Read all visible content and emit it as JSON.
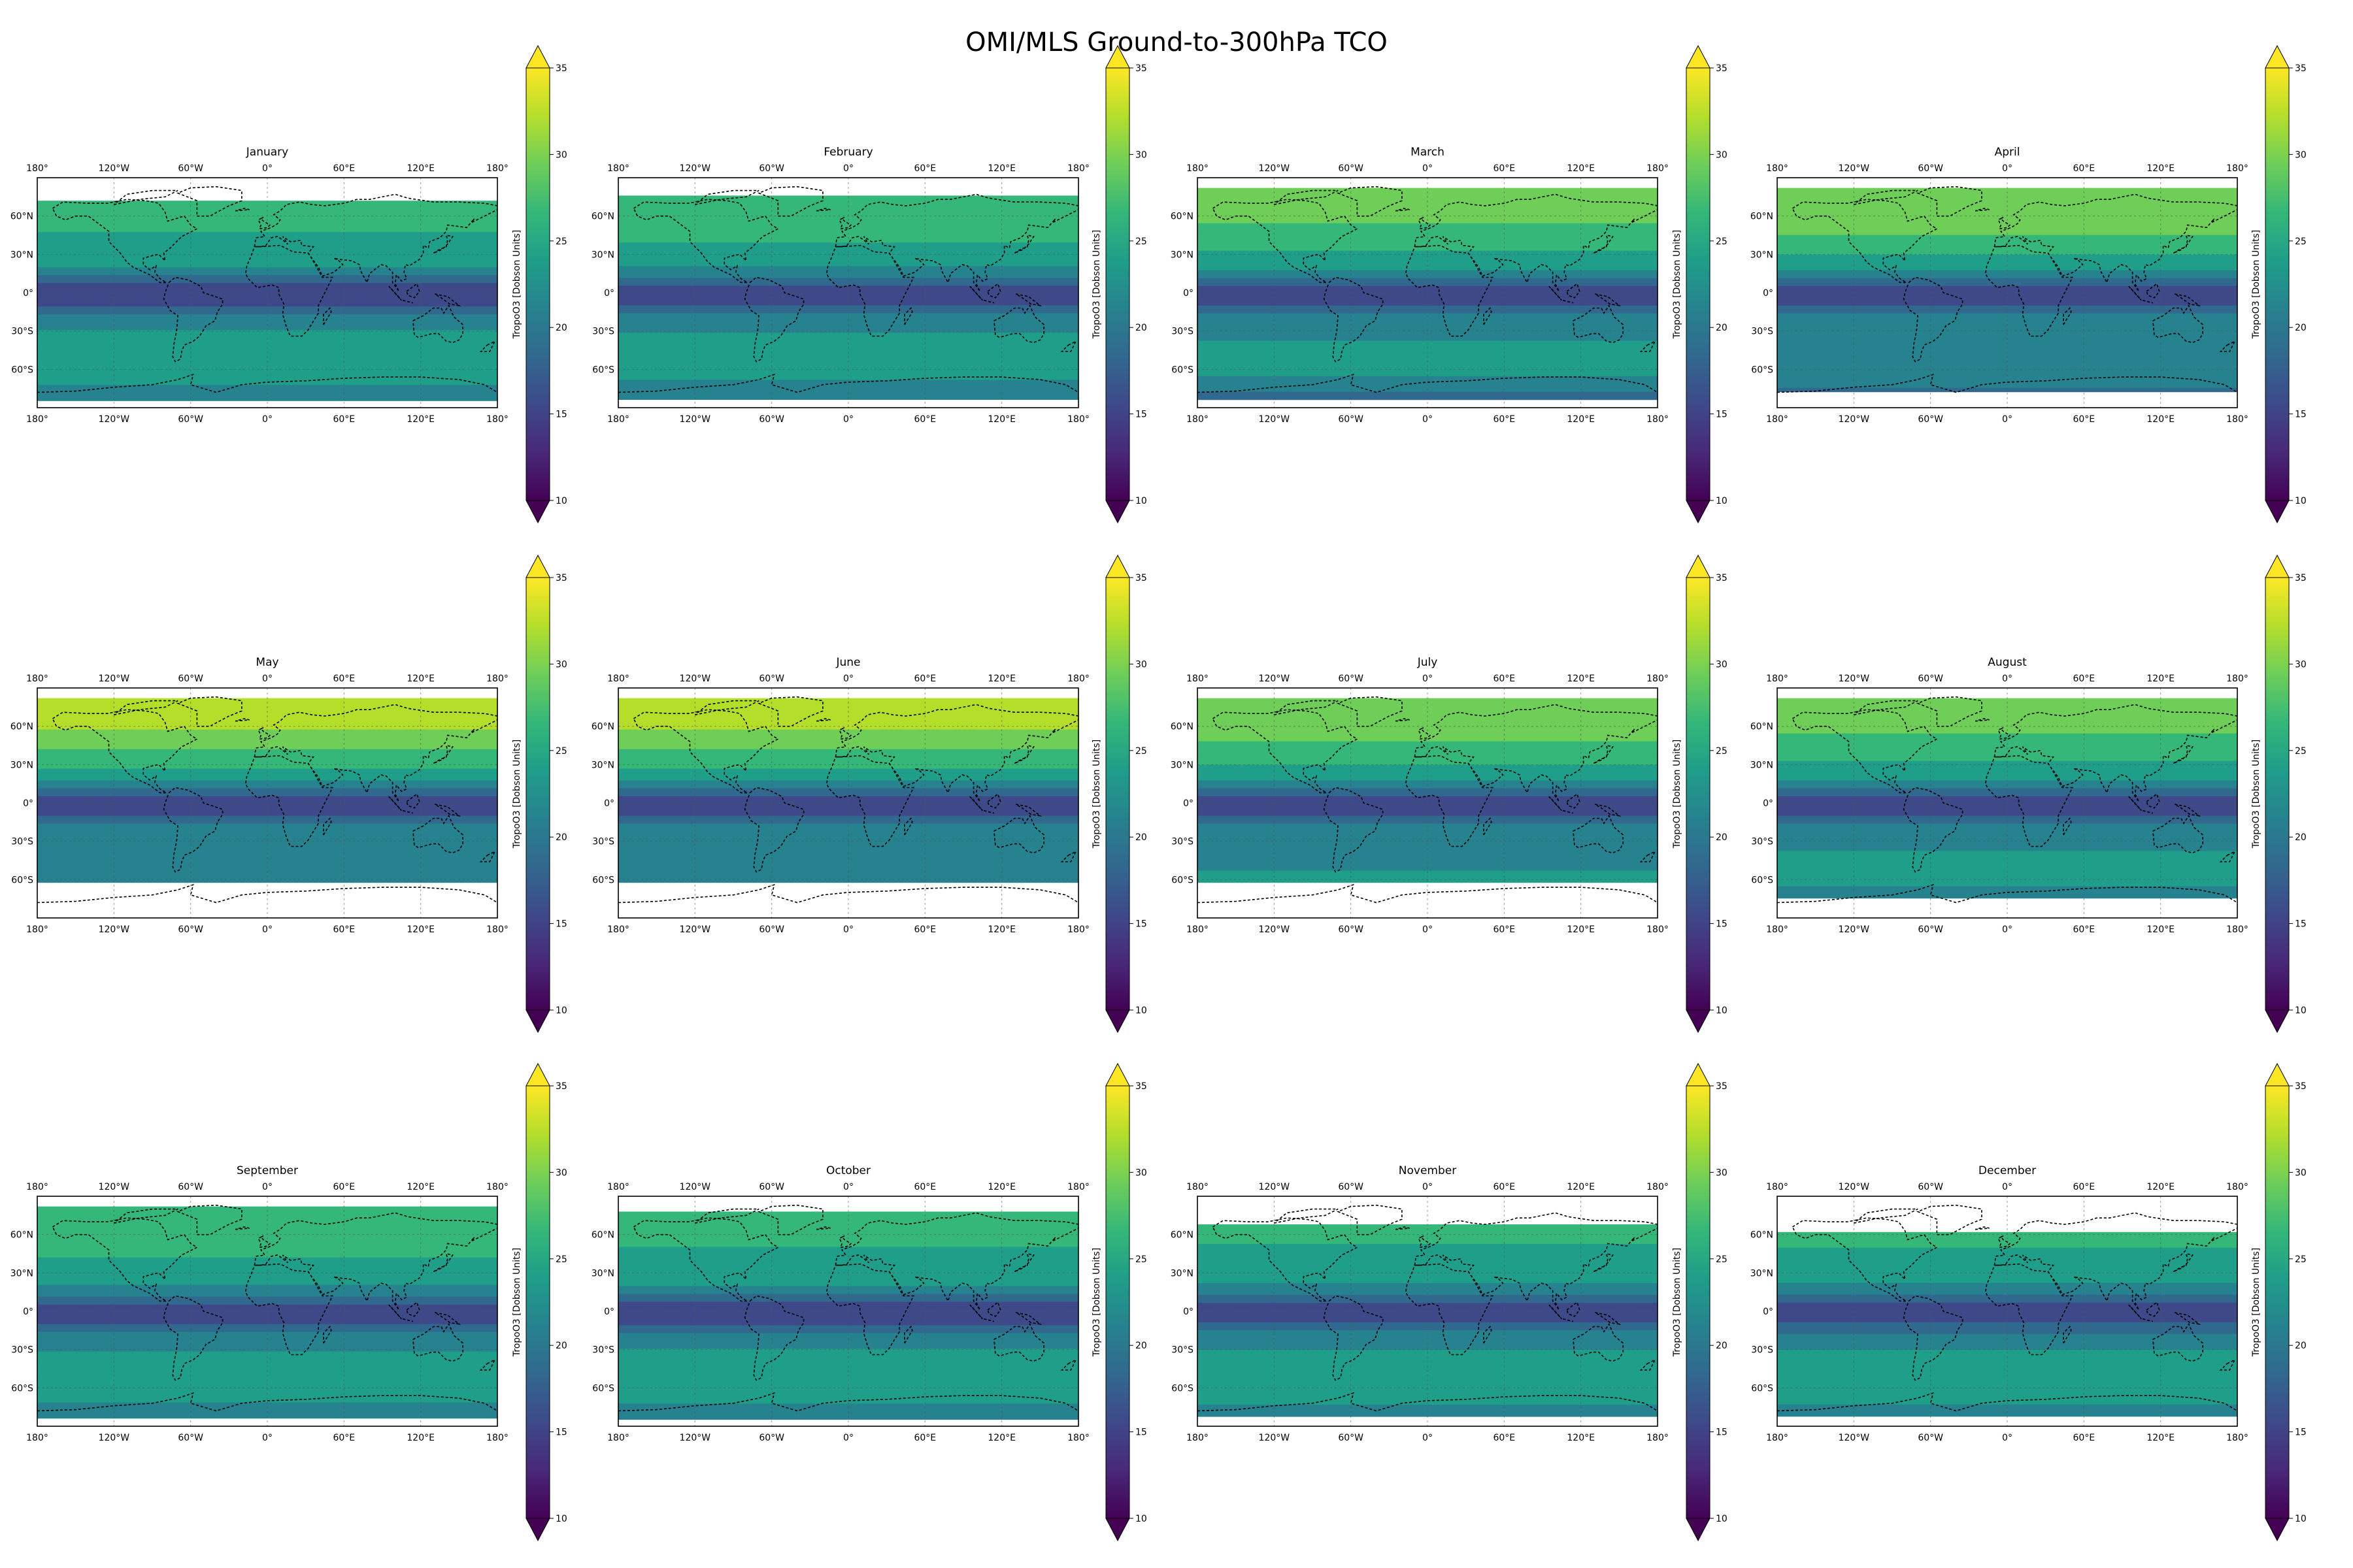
{
  "figure": {
    "title": "OMI/MLS Ground-to-300hPa TCO"
  },
  "colorbar": {
    "label": "TropoO3 [Dobson Units]",
    "ticks": [
      "10",
      "15",
      "20",
      "25",
      "30",
      "35"
    ],
    "min": 10,
    "max": 35,
    "colormap": "viridis",
    "colors": [
      "#440154",
      "#482878",
      "#3e4989",
      "#31688e",
      "#26828e",
      "#1f9e89",
      "#35b779",
      "#6ece58",
      "#b5de2b",
      "#fde725"
    ],
    "extend": "both"
  },
  "axes": {
    "lon_ticks": [
      "180°",
      "120°W",
      "60°W",
      "0°",
      "60°E",
      "120°E",
      "180°"
    ],
    "lat_ticks": [
      "60°N",
      "30°N",
      "0°",
      "30°S",
      "60°S"
    ],
    "gridlines": true,
    "coastlines": "dashed black"
  },
  "panels": [
    {
      "title": "January",
      "data_lat_range": [
        -82,
        72
      ]
    },
    {
      "title": "February",
      "data_lat_range": [
        -82,
        76
      ]
    },
    {
      "title": "March",
      "data_lat_range": [
        -82,
        82
      ]
    },
    {
      "title": "April",
      "data_lat_range": [
        -77,
        82
      ]
    },
    {
      "title": "May",
      "data_lat_range": [
        -62,
        82
      ]
    },
    {
      "title": "June",
      "data_lat_range": [
        -60,
        82
      ]
    },
    {
      "title": "July",
      "data_lat_range": [
        -62,
        82
      ]
    },
    {
      "title": "August",
      "data_lat_range": [
        -72,
        82
      ]
    },
    {
      "title": "September",
      "data_lat_range": [
        -82,
        82
      ]
    },
    {
      "title": "October",
      "data_lat_range": [
        -82,
        78
      ]
    },
    {
      "title": "November",
      "data_lat_range": [
        -82,
        68
      ]
    },
    {
      "title": "December",
      "data_lat_range": [
        -82,
        62
      ]
    }
  ]
}
